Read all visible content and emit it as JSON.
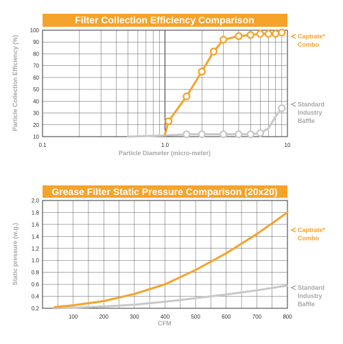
{
  "chart_data": [
    {
      "type": "line",
      "title": "Filter Collection Efficiency Comparison",
      "xlabel": "Particle Diameter (micro-meter)",
      "ylabel": "Particle Collection Efficiency (%)",
      "x_scale": "log",
      "xlim": [
        0.1,
        10
      ],
      "ylim": [
        10,
        100
      ],
      "x_ticks": [
        "0.1",
        "1.0",
        "10"
      ],
      "y_ticks": [
        "10",
        "20",
        "30",
        "40",
        "50",
        "60",
        "70",
        "80",
        "90",
        "100"
      ],
      "grid": true,
      "legend_position": "right",
      "series": [
        {
          "name": "Captrate® Combo",
          "color": "#f5a32b",
          "marker": "circle",
          "x": [
            1.0,
            1.07,
            1.5,
            2.0,
            2.5,
            3.0,
            4.0,
            5.0,
            6.0,
            7.0,
            8.0,
            9.0
          ],
          "y": [
            12,
            23,
            44,
            65,
            82,
            92,
            95,
            96,
            97,
            97,
            97,
            98
          ],
          "marker_x": [
            1.07,
            1.5,
            2.0,
            2.5,
            3.0,
            4.0,
            5.0,
            6.0,
            7.0,
            8.0,
            9.0
          ],
          "marker_y": [
            23,
            44,
            65,
            82,
            92,
            95,
            96,
            97,
            97,
            97,
            98
          ]
        },
        {
          "name": "Standard Industry Baffle",
          "color": "#c8c8c8",
          "marker": "circle",
          "x": [
            0.5,
            1.0,
            1.5,
            2.0,
            3.0,
            4.0,
            5.0,
            6.0,
            7.0,
            8.0,
            9.0
          ],
          "y": [
            10,
            11,
            12,
            12,
            12,
            12,
            12,
            13,
            17,
            27,
            34
          ],
          "marker_x": [
            1.5,
            2.0,
            3.0,
            4.0,
            5.0,
            6.0,
            9.0
          ],
          "marker_y": [
            12,
            12,
            12,
            12,
            12,
            13,
            34
          ]
        }
      ],
      "legend": [
        {
          "lines": [
            "Captrate*",
            "Combo"
          ],
          "color": "#f5a32b"
        },
        {
          "lines": [
            "Standard",
            "Industry",
            "Baffle"
          ],
          "color": "#a8a8a8"
        }
      ]
    },
    {
      "type": "line",
      "title": "Grease Filter Static Pressure Comparison (20x20)",
      "xlabel": "CFM",
      "ylabel": "Static pressure (w.g.)",
      "xlim": [
        0,
        800
      ],
      "ylim": [
        0.2,
        2.0
      ],
      "x_ticks": [
        "100",
        "200",
        "300",
        "400",
        "500",
        "600",
        "700",
        "800"
      ],
      "y_ticks": [
        "0.2",
        "0.4",
        "0.6",
        "0.8",
        "1.0",
        "1.2",
        "1.4",
        "1.6",
        "1.8",
        "2.0"
      ],
      "grid": true,
      "legend_position": "right",
      "series": [
        {
          "name": "Captrate® Combo",
          "color": "#f5a32b",
          "x": [
            40,
            100,
            200,
            300,
            400,
            500,
            600,
            700,
            800
          ],
          "y": [
            0.22,
            0.25,
            0.32,
            0.44,
            0.6,
            0.84,
            1.12,
            1.44,
            1.8
          ]
        },
        {
          "name": "Standard Industry Baffle",
          "color": "#c8c8c8",
          "x": [
            40,
            100,
            200,
            300,
            400,
            500,
            600,
            700,
            800
          ],
          "y": [
            0.2,
            0.21,
            0.23,
            0.26,
            0.31,
            0.37,
            0.43,
            0.5,
            0.58
          ]
        }
      ],
      "legend": [
        {
          "lines": [
            "Captrate*",
            "Combo"
          ],
          "color": "#f5a32b"
        },
        {
          "lines": [
            "Standard",
            "Industry",
            "Baffle"
          ],
          "color": "#a8a8a8"
        }
      ]
    }
  ]
}
